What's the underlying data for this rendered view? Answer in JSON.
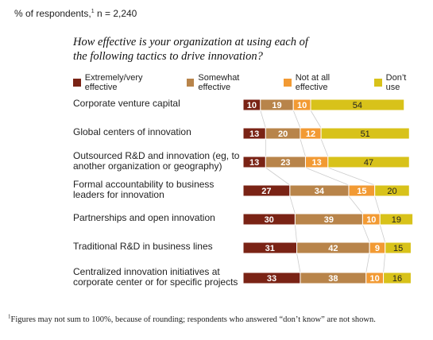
{
  "header": {
    "respondents_prefix": "% of respondents,",
    "respondents_sup": "1",
    "respondents_n": " n = 2,240"
  },
  "chart_data": {
    "type": "bar",
    "orientation": "horizontal",
    "stacked": true,
    "title": "How effective is your organization at using each of\nthe following tactics to drive innovation?",
    "categories": [
      "Corporate venture capital",
      "Global centers of innovation",
      "Outsourced R&D and innovation (eg, to\nanother organization or geography)",
      "Formal accountability to business\nleaders for innovation",
      "Partnerships and open innovation",
      "Traditional R&D in business lines",
      "Centralized innovation initiatives at\ncorporate center or for specific projects"
    ],
    "series": [
      {
        "name": "Extremely/very effective",
        "color": "#7a2315",
        "label_color": "#ffffff",
        "values": [
          10,
          13,
          13,
          27,
          30,
          31,
          33
        ]
      },
      {
        "name": "Somewhat effective",
        "color": "#b8844a",
        "label_color": "#ffffff",
        "values": [
          19,
          20,
          23,
          34,
          39,
          42,
          38
        ]
      },
      {
        "name": "Not at all effective",
        "color": "#f29a33",
        "label_color": "#ffffff",
        "values": [
          10,
          12,
          13,
          15,
          10,
          9,
          10
        ]
      },
      {
        "name": "Don’t use",
        "color": "#d8c21a",
        "label_color": "#222222",
        "values": [
          54,
          51,
          47,
          20,
          19,
          15,
          16
        ]
      }
    ],
    "xlim": [
      0,
      100
    ],
    "legend_position": "top",
    "grid": false
  },
  "footnote": {
    "sup": "1",
    "text": "Figures may not sum to 100%, because of rounding; respondents who answered “don’t know” are not shown."
  }
}
